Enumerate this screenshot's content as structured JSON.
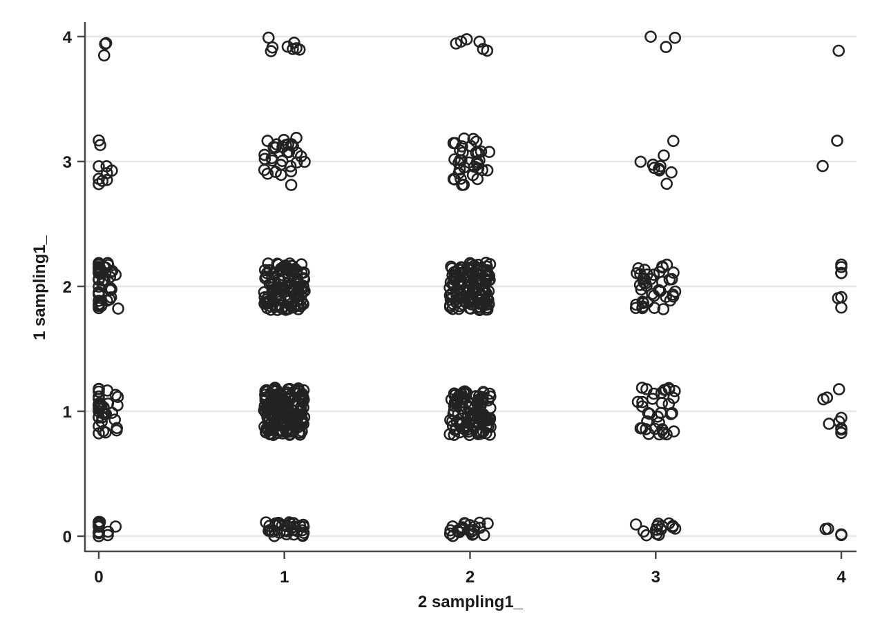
{
  "chart_data": {
    "type": "scatter",
    "title": "",
    "xlabel": "2 sampling1_",
    "ylabel": "1 sampling1_",
    "xlim": [
      0,
      4
    ],
    "ylim": [
      0,
      4
    ],
    "x_ticks": [
      "0",
      "1",
      "2",
      "3",
      "4"
    ],
    "y_ticks": [
      "0",
      "1",
      "2",
      "3",
      "4"
    ],
    "grid": "horizontal",
    "marker": "hollow-circle",
    "jitter": true,
    "colors": {
      "marker": "#222222",
      "grid": "#e6e6e6",
      "axis": "#4a4a4a"
    },
    "cell_counts": [
      {
        "x": 0,
        "y": 4,
        "count": 3
      },
      {
        "x": 1,
        "y": 4,
        "count": 8
      },
      {
        "x": 2,
        "y": 4,
        "count": 6
      },
      {
        "x": 3,
        "y": 4,
        "count": 3
      },
      {
        "x": 4,
        "y": 4,
        "count": 1
      },
      {
        "x": 0,
        "y": 3,
        "count": 10
      },
      {
        "x": 1,
        "y": 3,
        "count": 30
      },
      {
        "x": 2,
        "y": 3,
        "count": 35
      },
      {
        "x": 3,
        "y": 3,
        "count": 10
      },
      {
        "x": 4,
        "y": 3,
        "count": 2
      },
      {
        "x": 0,
        "y": 2,
        "count": 40
      },
      {
        "x": 1,
        "y": 2,
        "count": 120
      },
      {
        "x": 2,
        "y": 2,
        "count": 140
      },
      {
        "x": 3,
        "y": 2,
        "count": 40
      },
      {
        "x": 4,
        "y": 2,
        "count": 7
      },
      {
        "x": 0,
        "y": 1,
        "count": 35
      },
      {
        "x": 1,
        "y": 1,
        "count": 180
      },
      {
        "x": 2,
        "y": 1,
        "count": 110
      },
      {
        "x": 3,
        "y": 1,
        "count": 35
      },
      {
        "x": 4,
        "y": 1,
        "count": 9
      },
      {
        "x": 0,
        "y": 0,
        "count": 15
      },
      {
        "x": 1,
        "y": 0,
        "count": 35
      },
      {
        "x": 2,
        "y": 0,
        "count": 25
      },
      {
        "x": 3,
        "y": 0,
        "count": 15
      },
      {
        "x": 4,
        "y": 0,
        "count": 4
      }
    ]
  }
}
